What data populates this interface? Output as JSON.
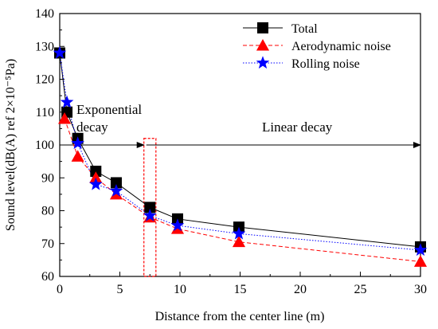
{
  "chart_data": {
    "type": "line",
    "xlabel": "Distance from the center line (m)",
    "ylabel": "Sound level(dB(A) ref 2×10⁻⁵Pa)",
    "xlim": [
      0,
      30
    ],
    "ylim": [
      60,
      140
    ],
    "xticks": [
      0,
      5,
      10,
      15,
      20,
      25,
      30
    ],
    "yticks": [
      60,
      70,
      80,
      90,
      100,
      110,
      120,
      130,
      140
    ],
    "grid": false,
    "legend_position": "top-right",
    "series": [
      {
        "name": "Total",
        "color": "#000000",
        "line_style": "solid",
        "marker": "square",
        "x": [
          0,
          0.6,
          1.5,
          3.0,
          4.7,
          7.5,
          9.8,
          14.9,
          30
        ],
        "y": [
          128,
          110,
          102,
          92,
          88.5,
          81,
          77.5,
          75,
          69
        ]
      },
      {
        "name": "Aerodynamic noise",
        "color": "#ff0000",
        "line_style": "dashed",
        "marker": "triangle",
        "x": [
          0.4,
          1.5,
          3.0,
          4.7,
          7.5,
          9.8,
          14.9,
          30
        ],
        "y": [
          108,
          96.5,
          90,
          85,
          78,
          74.5,
          70.5,
          64.5
        ]
      },
      {
        "name": "Rolling noise",
        "color": "#0000ff",
        "line_style": "dotted",
        "marker": "star",
        "x": [
          0,
          0.6,
          1.5,
          3.0,
          4.7,
          7.5,
          9.8,
          14.9,
          30
        ],
        "y": [
          128,
          113,
          100.5,
          88,
          86,
          78.5,
          75.5,
          73,
          68
        ]
      }
    ],
    "annotations": {
      "exponential_label_1": "Exponential",
      "exponential_label_2": "decay",
      "linear_label": "Linear decay",
      "exponential_arrow": {
        "x_start": 0,
        "x_end": 7,
        "y": 100
      },
      "linear_arrow": {
        "x_start": 7.2,
        "x_end": 30,
        "y": 100
      },
      "boundary_box": {
        "x_start": 7.0,
        "x_end": 8.0,
        "y_start": 60,
        "y_end": 102
      }
    }
  }
}
